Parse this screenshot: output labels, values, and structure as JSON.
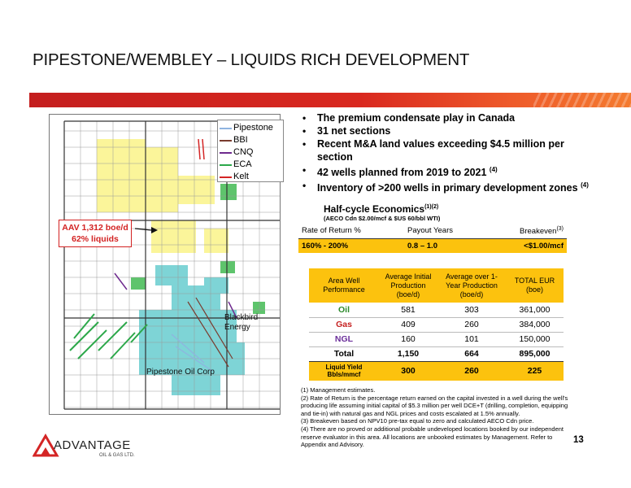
{
  "page": {
    "title": "PIPESTONE/WEMBLEY – LIQUIDS RICH DEVELOPMENT",
    "page_number": "13"
  },
  "map": {
    "legend": [
      {
        "label": "Pipestone",
        "color": "#8fb4e0"
      },
      {
        "label": "BBI",
        "color": "#7a3b2e"
      },
      {
        "label": "CNQ",
        "color": "#6e2a8e"
      },
      {
        "label": "ECA",
        "color": "#2ca84a"
      },
      {
        "label": "Kelt",
        "color": "#d42525"
      }
    ],
    "callout": {
      "line1": "AAV 1,312 boe/d",
      "line2": "62% liquids"
    },
    "labels": {
      "blackbird_1": "Blackbird",
      "blackbird_2": "Energy",
      "pipestone": "Pipestone Oil Corp"
    }
  },
  "bullets": {
    "b1": "The premium condensate play in Canada",
    "b2": "31 net sections",
    "b3": "Recent M&A land values exceeding $4.5 million per section",
    "b4_text": "42 wells planned from 2019 to 2021",
    "b4_sup": "(4)",
    "b5_text": "Inventory of >200 wells in primary development zones",
    "b5_sup": "(4)"
  },
  "half_cycle": {
    "title": "Half-cycle Economics",
    "title_sup": "(1)(2)",
    "subtitle": "(AECO Cdn $2.00/mcf & $US 60/bbl WTI)",
    "headers": {
      "ror": "Rate of Return %",
      "payout": "Payout Years",
      "breakeven": "Breakeven",
      "breakeven_sup": "(3)"
    },
    "row": {
      "ror": "160% - 200%",
      "payout": "0.8 – 1.0",
      "breakeven": "<$1.00/mcf"
    }
  },
  "performance": {
    "headers": {
      "col1": "Area Well Performance",
      "col2": "Average Initial Production (boe/d)",
      "col3": "Average over 1-Year Production (boe/d)",
      "col4": "TOTAL EUR (boe)"
    },
    "rows": [
      {
        "label": "Oil",
        "initial": "581",
        "year": "303",
        "eur": "361,000",
        "color": "#2c8a2c"
      },
      {
        "label": "Gas",
        "initial": "409",
        "year": "260",
        "eur": "384,000",
        "color": "#c52020"
      },
      {
        "label": "NGL",
        "initial": "160",
        "year": "101",
        "eur": "150,000",
        "color": "#6b2f9a"
      }
    ],
    "total": {
      "label": "Total",
      "initial": "1,150",
      "year": "664",
      "eur": "895,000"
    },
    "liquid_yield": {
      "label": "Liquid Yield Bbls/mmcf",
      "initial": "300",
      "year": "260",
      "eur": "225"
    }
  },
  "notes": {
    "n1": "(1) Management estimates.",
    "n2": "(2) Rate of Return is the percentage return earned on the capital invested in a well during the well's producing life assuming initial capital of $5.3 million per well DCE+T (drilling, completion, equipping and tie-in) with natural gas and NGL prices and costs escalated at 1.5% annually.",
    "n3": "(3) Breakeven based on NPV10 pre-tax equal to zero and calculated AECO Cdn price.",
    "n4": "(4) There are no proved or additional probable undeveloped locations booked by our independent reserve evaluator in this area. All locations are unbooked estimates by Management. Refer to Appendix and Advisory."
  },
  "logo": {
    "name": "ADVANTAGE",
    "sub": "OIL & GAS LTD."
  }
}
